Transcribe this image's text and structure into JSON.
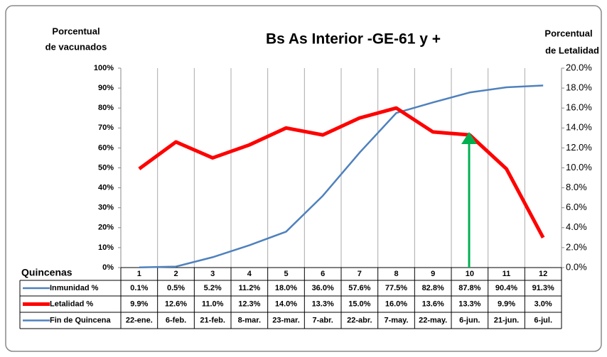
{
  "chart_data": {
    "type": "line",
    "title": "Bs As Interior -GE-61 y +",
    "ylabel": [
      "Porcentual",
      "de vacunados"
    ],
    "y2label": [
      "Porcentual",
      "de Letalidad"
    ],
    "xlabel": "Quincenas",
    "categories": [
      "1",
      "2",
      "3",
      "4",
      "5",
      "6",
      "7",
      "8",
      "9",
      "10",
      "11",
      "12"
    ],
    "series": [
      {
        "name": "Inmunidad  %",
        "color": "#4f81bd",
        "axis": "y",
        "values": [
          0.1,
          0.5,
          5.2,
          11.2,
          18.0,
          36.0,
          57.6,
          77.5,
          82.8,
          87.8,
          90.4,
          91.3
        ],
        "value_labels": [
          "0.1%",
          "0.5%",
          "5.2%",
          "11.2%",
          "18.0%",
          "36.0%",
          "57.6%",
          "77.5%",
          "82.8%",
          "87.8%",
          "90.4%",
          "91.3%"
        ]
      },
      {
        "name": "Letalidad %",
        "color": "#ff0000",
        "axis": "y2",
        "values": [
          9.9,
          12.6,
          11.0,
          12.3,
          14.0,
          13.3,
          15.0,
          16.0,
          13.6,
          13.3,
          9.9,
          3.0
        ],
        "value_labels": [
          "9.9%",
          "12.6%",
          "11.0%",
          "12.3%",
          "14.0%",
          "13.3%",
          "15.0%",
          "16.0%",
          "13.6%",
          "13.3%",
          "9.9%",
          "3.0%"
        ]
      }
    ],
    "date_row": {
      "name": "Fin de Quincena",
      "color": "#4f81bd",
      "values": [
        "22-ene.",
        "6-feb.",
        "21-feb.",
        "8-mar.",
        "23-mar.",
        "7-abr.",
        "22-abr.",
        "7-may.",
        "22-may.",
        "6-jun.",
        "21-jun.",
        "6-jul."
      ]
    },
    "ylim": [
      0,
      100
    ],
    "yticks": [
      {
        "value": 0,
        "label": "0%"
      },
      {
        "value": 10,
        "label": "10%"
      },
      {
        "value": 20,
        "label": "20%"
      },
      {
        "value": 30,
        "label": "30%"
      },
      {
        "value": 40,
        "label": "40%"
      },
      {
        "value": 50,
        "label": "50%"
      },
      {
        "value": 60,
        "label": "60%"
      },
      {
        "value": 70,
        "label": "70%"
      },
      {
        "value": 80,
        "label": "80%"
      },
      {
        "value": 90,
        "label": "90%"
      },
      {
        "value": 100,
        "label": "100%"
      }
    ],
    "y2lim": [
      0,
      20
    ],
    "y2ticks": [
      {
        "value": 0,
        "label": "0.0%"
      },
      {
        "value": 2,
        "label": "2.0%"
      },
      {
        "value": 4,
        "label": "4.0%"
      },
      {
        "value": 6,
        "label": "6.0%"
      },
      {
        "value": 8,
        "label": "8.0%"
      },
      {
        "value": 10,
        "label": "10.0%"
      },
      {
        "value": 12,
        "label": "12.0%"
      },
      {
        "value": 14,
        "label": "14.0%"
      },
      {
        "value": 16,
        "label": "16.0%"
      },
      {
        "value": 18,
        "label": "18.0%"
      },
      {
        "value": 20,
        "label": "20.0%"
      }
    ]
  }
}
